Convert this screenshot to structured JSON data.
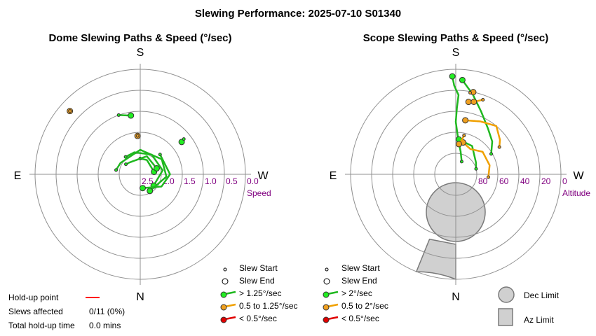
{
  "title": "Slewing Performance: 2025-07-10 S01340",
  "colors": {
    "fast": "#1fb81f",
    "fast_dot": "#22ee22",
    "medium": "#f0a000",
    "medium_dot": "#f0a020",
    "slow": "#e00000",
    "grid": "#909090",
    "scale_label": "#800080",
    "limit_fill": "#d0d0d0",
    "limit_stroke": "#7a7a7a",
    "holdup": "#ff0000"
  },
  "footer": {
    "holdup_label": "Hold-up point",
    "slews_affected_label": "Slews affected",
    "slews_affected_value": "0/11 (0%)",
    "total_holdup_label": "Total hold-up time",
    "total_holdup_value": "0.0 mins"
  },
  "limit_legend": {
    "dec_label": "Dec Limit",
    "az_label": "Az Limit"
  },
  "chart_data": [
    {
      "type": "scatter",
      "coordinate_system": "polar",
      "title": "Dome Slewing Paths & Speed (°/sec)",
      "directions": {
        "top": "S",
        "bottom": "N",
        "left": "E",
        "right": "W"
      },
      "radial_label": "Speed",
      "radial_ticks": [
        "2.5",
        "2.0",
        "1.5",
        "1.0",
        "0.5",
        "0.0"
      ],
      "radial_range": [
        3.0,
        0.0
      ],
      "legend": {
        "start": "Slew Start",
        "end": "Slew End",
        "fast": "> 1.25°/sec",
        "medium": "0.5 to 1.25°/sec",
        "slow": "< 0.5°/sec"
      },
      "slews": [
        {
          "speed_class": "medium",
          "points": [
            [
              4,
              1.9
            ],
            [
              4,
              1.9
            ]
          ]
        },
        {
          "speed_class": "medium",
          "points": [
            [
              48,
              0.3
            ],
            [
              48,
              0.3
            ]
          ]
        },
        {
          "speed_class": "fast",
          "points": [
            [
              9,
              1.3
            ],
            [
              20,
              1.2
            ]
          ]
        },
        {
          "speed_class": "fast",
          "points": [
            [
              -52,
              1.5
            ],
            [
              -51,
              1.4
            ]
          ]
        },
        {
          "speed_class": "fast",
          "points": [
            [
              -80,
              2.6
            ],
            [
              -25,
              2.55
            ],
            [
              0,
              2.55
            ]
          ]
        },
        {
          "speed_class": "fast",
          "points": [
            [
              -70,
              2.5
            ],
            [
              -20,
              2.45
            ],
            [
              40,
              2.55
            ],
            [
              55,
              2.5
            ]
          ]
        },
        {
          "speed_class": "fast",
          "points": [
            [
              -130,
              2.5
            ],
            [
              -80,
              2.35
            ],
            [
              -30,
              2.35
            ],
            [
              15,
              2.35
            ],
            [
              40,
              2.35
            ]
          ]
        },
        {
          "speed_class": "fast",
          "points": [
            [
              -150,
              2.45
            ],
            [
              -95,
              2.25
            ],
            [
              -55,
              2.25
            ],
            [
              0,
              2.3
            ],
            [
              60,
              2.35
            ],
            [
              80,
              2.3
            ]
          ]
        },
        {
          "speed_class": "fast",
          "points": [
            [
              -170,
              2.6
            ],
            [
              -120,
              2.3
            ],
            [
              -90,
              2.15
            ],
            [
              -45,
              2.2
            ]
          ]
        }
      ]
    },
    {
      "type": "scatter",
      "coordinate_system": "polar",
      "title": "Scope Slewing Paths & Speed (°/sec)",
      "directions": {
        "top": "S",
        "bottom": "N",
        "left": "E",
        "right": "W"
      },
      "radial_label": "Altitude",
      "radial_ticks": [
        "80",
        "60",
        "40",
        "20",
        "0"
      ],
      "radial_range": [
        90,
        0
      ],
      "legend": {
        "start": "Slew Start",
        "end": "Slew End",
        "fast": "> 2°/sec",
        "medium": "0.5 to 2°/sec",
        "slow": "< 0.5°/sec"
      },
      "slews": [
        {
          "speed_class": "fast",
          "points": [
            [
              2,
              6
            ],
            [
              1,
              14
            ],
            [
              -2,
              22
            ],
            [
              -1,
              33
            ],
            [
              0,
              45
            ],
            [
              -2,
              54
            ],
            [
              -5,
              62
            ],
            [
              -12,
              70
            ],
            [
              -25,
              78
            ]
          ]
        },
        {
          "speed_class": "fast",
          "points": [
            [
              -4,
              9
            ],
            [
              -12,
              20
            ],
            [
              -22,
              32
            ],
            [
              -35,
              42
            ],
            [
              -48,
              48
            ],
            [
              -60,
              55
            ]
          ]
        },
        {
          "speed_class": "fast",
          "points": [
            [
              -5,
              60
            ],
            [
              -30,
              62
            ],
            [
              -60,
              70
            ],
            [
              -75,
              72
            ]
          ]
        },
        {
          "speed_class": "medium",
          "points": [
            [
              -10,
              27
            ],
            [
              -14,
              26
            ]
          ]
        },
        {
          "speed_class": "medium",
          "points": [
            [
              -14,
              26
            ],
            [
              -20,
              22
            ]
          ]
        },
        {
          "speed_class": "medium",
          "points": [
            [
              -12,
              18
            ],
            [
              -10,
              19
            ]
          ]
        },
        {
          "speed_class": "medium",
          "points": [
            [
              -10,
              43
            ],
            [
              -25,
              40
            ],
            [
              -40,
              36
            ],
            [
              -52,
              42
            ],
            [
              -58,
              46
            ]
          ]
        },
        {
          "speed_class": "medium",
          "points": [
            [
              -13,
              62
            ],
            [
              -30,
              65
            ],
            [
              -50,
              60
            ],
            [
              -75,
              60
            ],
            [
              -95,
              62
            ]
          ]
        },
        {
          "speed_class": "medium",
          "points": [
            [
              -6,
              64
            ],
            [
              -10,
              60
            ],
            [
              -12,
              56
            ]
          ]
        }
      ],
      "limits": {
        "dec": "circle",
        "az": "wedge"
      }
    }
  ]
}
